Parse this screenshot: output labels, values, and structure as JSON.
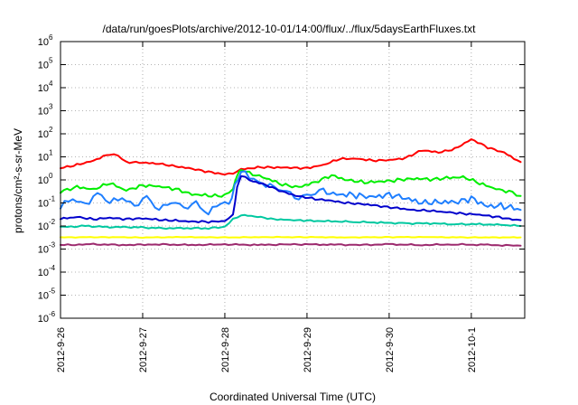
{
  "chart_data": {
    "type": "line",
    "title": "/data/run/goesPlots/archive/2012-10-01/14:00/flux/../flux/5daysEarthFluxes.txt",
    "xlabel": "Coordinated Universal Time (UTC)",
    "ylabel": "protons/cm²-s-sr-MeV",
    "yscale": "log",
    "ylim": [
      1e-06,
      1000000.0
    ],
    "xlim": [
      0.0,
      5.65
    ],
    "x_units": "days since 2012-9-26 00:00 UTC",
    "grid": true,
    "legend": "none",
    "x_ticks": [
      {
        "value": 0,
        "label": "2012-9-26"
      },
      {
        "value": 1,
        "label": "2012-9-27"
      },
      {
        "value": 2,
        "label": "2012-9-28"
      },
      {
        "value": 3,
        "label": "2012-9-29"
      },
      {
        "value": 4,
        "label": "2012-9-30"
      },
      {
        "value": 5,
        "label": "2012-10-1"
      }
    ],
    "y_ticks": [
      {
        "value": 1e-06,
        "base": "10",
        "exp": "-6"
      },
      {
        "value": 1e-05,
        "base": "10",
        "exp": "-5"
      },
      {
        "value": 0.0001,
        "base": "10",
        "exp": "-4"
      },
      {
        "value": 0.001,
        "base": "10",
        "exp": "-3"
      },
      {
        "value": 0.01,
        "base": "10",
        "exp": "-2"
      },
      {
        "value": 0.1,
        "base": "10",
        "exp": "-1"
      },
      {
        "value": 1,
        "base": "10",
        "exp": "0"
      },
      {
        "value": 10,
        "base": "10",
        "exp": "1"
      },
      {
        "value": 100,
        "base": "10",
        "exp": "2"
      },
      {
        "value": 1000,
        "base": "10",
        "exp": "3"
      },
      {
        "value": 10000,
        "base": "10",
        "exp": "4"
      },
      {
        "value": 100000,
        "base": "10",
        "exp": "5"
      },
      {
        "value": 1000000,
        "base": "10",
        "exp": "6"
      }
    ],
    "series": [
      {
        "color": "#ff0000",
        "x": [
          0.0,
          0.2,
          0.4,
          0.6,
          0.7,
          0.8,
          1.0,
          1.2,
          1.4,
          1.6,
          1.8,
          2.0,
          2.1,
          2.2,
          2.4,
          2.6,
          2.8,
          3.0,
          3.2,
          3.4,
          3.6,
          3.8,
          4.0,
          4.2,
          4.4,
          4.6,
          4.8,
          5.0,
          5.2,
          5.4,
          5.6
        ],
        "y": [
          3.2,
          4.5,
          7,
          13,
          11,
          6,
          5.5,
          5,
          4,
          3,
          2.2,
          1.8,
          2.0,
          2.8,
          3.6,
          3.5,
          3.3,
          3.3,
          4.5,
          8,
          8.5,
          7,
          7,
          9,
          20,
          15,
          22,
          60,
          25,
          15,
          6
        ]
      },
      {
        "color": "#00ee00",
        "x": [
          0.0,
          0.2,
          0.4,
          0.6,
          0.8,
          1.0,
          1.2,
          1.4,
          1.6,
          1.8,
          2.0,
          2.1,
          2.15,
          2.2,
          2.3,
          2.5,
          2.7,
          2.9,
          3.1,
          3.3,
          3.5,
          3.7,
          3.9,
          4.1,
          4.3,
          4.5,
          4.7,
          4.9,
          5.1,
          5.3,
          5.5,
          5.6
        ],
        "y": [
          0.3,
          0.5,
          0.4,
          0.7,
          0.35,
          0.6,
          0.5,
          0.4,
          0.25,
          0.2,
          0.2,
          0.4,
          1.8,
          2.6,
          2.0,
          1.2,
          0.6,
          0.5,
          0.8,
          1.5,
          1.0,
          0.8,
          0.8,
          1.0,
          1.2,
          1.0,
          1.2,
          1.4,
          0.7,
          0.4,
          0.3,
          0.2
        ]
      },
      {
        "color": "#1f7fff",
        "x": [
          0.0,
          0.15,
          0.3,
          0.45,
          0.6,
          0.75,
          0.9,
          1.05,
          1.2,
          1.35,
          1.5,
          1.65,
          1.8,
          1.95,
          2.05,
          2.12,
          2.2,
          2.3,
          2.45,
          2.6,
          2.75,
          2.9,
          3.05,
          3.2,
          3.4,
          3.6,
          3.8,
          4.0,
          4.2,
          4.4,
          4.6,
          4.8,
          5.0,
          5.2,
          5.4,
          5.6
        ],
        "y": [
          0.07,
          0.14,
          0.09,
          0.25,
          0.1,
          0.2,
          0.07,
          0.15,
          0.06,
          0.13,
          0.05,
          0.1,
          0.04,
          0.1,
          0.08,
          0.6,
          2.2,
          1.3,
          0.8,
          0.4,
          0.3,
          0.2,
          0.22,
          0.3,
          0.25,
          0.2,
          0.18,
          0.25,
          0.15,
          0.1,
          0.12,
          0.1,
          0.15,
          0.08,
          0.07,
          0.05
        ]
      },
      {
        "color": "#0000cc",
        "x": [
          0.0,
          0.2,
          0.4,
          0.6,
          0.8,
          1.0,
          1.2,
          1.4,
          1.6,
          1.8,
          2.0,
          2.1,
          2.15,
          2.2,
          2.3,
          2.5,
          2.7,
          2.9,
          3.1,
          3.3,
          3.5,
          3.7,
          3.9,
          4.1,
          4.3,
          4.5,
          4.7,
          4.9,
          5.1,
          5.3,
          5.5,
          5.6
        ],
        "y": [
          0.02,
          0.025,
          0.02,
          0.022,
          0.02,
          0.022,
          0.018,
          0.017,
          0.016,
          0.015,
          0.016,
          0.03,
          0.5,
          1.5,
          1.0,
          0.6,
          0.3,
          0.2,
          0.15,
          0.12,
          0.1,
          0.09,
          0.07,
          0.06,
          0.05,
          0.045,
          0.04,
          0.035,
          0.03,
          0.025,
          0.02,
          0.018
        ]
      },
      {
        "color": "#00c8a0",
        "x": [
          0.0,
          0.3,
          0.6,
          0.9,
          1.2,
          1.5,
          1.8,
          2.0,
          2.1,
          2.2,
          2.4,
          2.6,
          2.8,
          3.0,
          3.3,
          3.6,
          3.9,
          4.2,
          4.5,
          4.8,
          5.1,
          5.4,
          5.6
        ],
        "y": [
          0.009,
          0.01,
          0.009,
          0.009,
          0.008,
          0.008,
          0.008,
          0.009,
          0.02,
          0.03,
          0.025,
          0.02,
          0.018,
          0.017,
          0.016,
          0.015,
          0.014,
          0.013,
          0.013,
          0.012,
          0.012,
          0.011,
          0.01
        ]
      },
      {
        "color": "#ffff00",
        "x": [
          0.0,
          0.5,
          1.0,
          1.5,
          2.0,
          2.5,
          3.0,
          3.5,
          4.0,
          4.5,
          5.0,
          5.6
        ],
        "y": [
          0.0032,
          0.0033,
          0.0032,
          0.0033,
          0.0032,
          0.0033,
          0.0033,
          0.0032,
          0.0033,
          0.0033,
          0.0032,
          0.0032
        ]
      },
      {
        "color": "#9c2a6e",
        "x": [
          0.0,
          0.4,
          0.8,
          1.2,
          1.6,
          2.0,
          2.4,
          2.8,
          3.2,
          3.6,
          4.0,
          4.4,
          4.8,
          5.2,
          5.6
        ],
        "y": [
          0.0015,
          0.0016,
          0.0015,
          0.0016,
          0.0015,
          0.0016,
          0.0015,
          0.0016,
          0.0016,
          0.0015,
          0.0016,
          0.0015,
          0.0016,
          0.0015,
          0.0014
        ]
      }
    ]
  }
}
